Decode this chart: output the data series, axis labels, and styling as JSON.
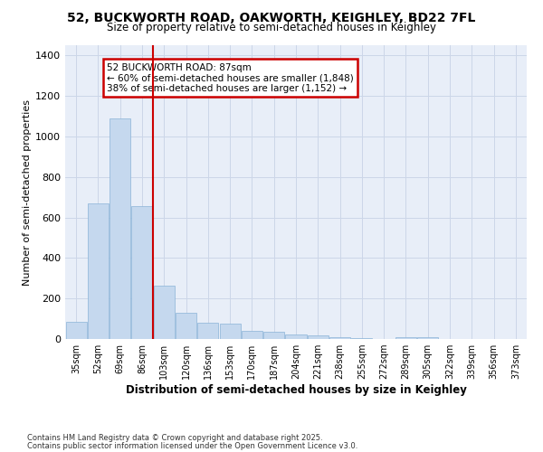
{
  "title_line1": "52, BUCKWORTH ROAD, OAKWORTH, KEIGHLEY, BD22 7FL",
  "title_line2": "Size of property relative to semi-detached houses in Keighley",
  "xlabel": "Distribution of semi-detached houses by size in Keighley",
  "ylabel": "Number of semi-detached properties",
  "categories": [
    "35sqm",
    "52sqm",
    "69sqm",
    "86sqm",
    "103sqm",
    "120sqm",
    "136sqm",
    "153sqm",
    "170sqm",
    "187sqm",
    "204sqm",
    "221sqm",
    "238sqm",
    "255sqm",
    "272sqm",
    "289sqm",
    "305sqm",
    "322sqm",
    "339sqm",
    "356sqm",
    "373sqm"
  ],
  "values": [
    85,
    670,
    1090,
    655,
    265,
    130,
    80,
    75,
    40,
    35,
    22,
    18,
    8,
    5,
    0,
    10,
    7,
    0,
    0,
    0,
    0
  ],
  "bar_color": "#c5d8ee",
  "bar_edge_color": "#8ab4d8",
  "grid_color": "#ccd6e8",
  "bg_color": "#e8eef8",
  "fig_bg_color": "#ffffff",
  "property_line_color": "#cc0000",
  "property_line_index": 3,
  "annotation_text": "52 BUCKWORTH ROAD: 87sqm\n← 60% of semi-detached houses are smaller (1,848)\n38% of semi-detached houses are larger (1,152) →",
  "annotation_box_color": "#cc0000",
  "ylim": [
    0,
    1450
  ],
  "yticks": [
    0,
    200,
    400,
    600,
    800,
    1000,
    1200,
    1400
  ],
  "footnote_line1": "Contains HM Land Registry data © Crown copyright and database right 2025.",
  "footnote_line2": "Contains public sector information licensed under the Open Government Licence v3.0."
}
